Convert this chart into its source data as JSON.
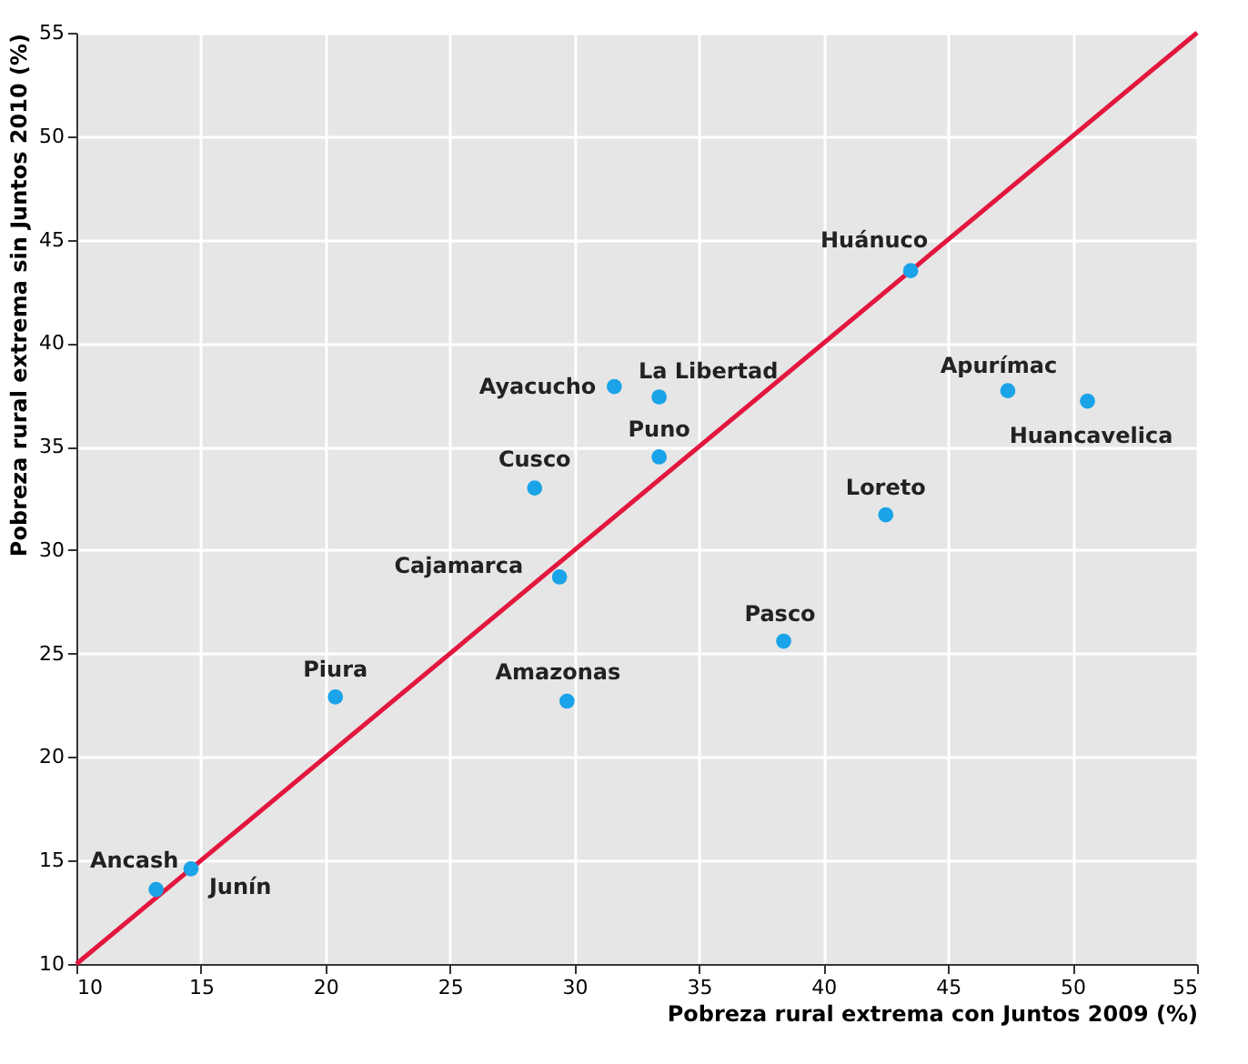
{
  "chart_data": {
    "type": "scatter",
    "xlabel": "Pobreza rural extrema con Juntos 2009 (%)",
    "ylabel": "Pobreza rural extrema sin Juntos 2010 (%)",
    "xlim": [
      10,
      55
    ],
    "ylim": [
      10,
      55
    ],
    "xticks": [
      10,
      15,
      20,
      25,
      30,
      35,
      40,
      45,
      50,
      55
    ],
    "yticks": [
      10,
      15,
      20,
      25,
      30,
      35,
      40,
      45,
      50,
      55
    ],
    "grid": true,
    "series": [
      {
        "color": "#1aa3e8",
        "marker": "circle",
        "x": [
          13.2,
          14.6,
          20.4,
          29.7,
          29.4,
          28.4,
          31.6,
          33.4,
          33.4,
          38.4,
          42.5,
          43.5,
          47.4,
          50.6
        ],
        "values": [
          13.6,
          14.6,
          22.9,
          22.7,
          28.7,
          33.0,
          37.9,
          37.4,
          34.5,
          25.6,
          31.7,
          43.5,
          37.7,
          37.2
        ]
      },
      {
        "type": "line",
        "color": "#e3173e",
        "line_style": "solid",
        "x": [
          10,
          55
        ],
        "values": [
          10,
          55
        ]
      }
    ],
    "annotations": [
      {
        "text": "Ancash",
        "x": 13.2,
        "y": 13.6
      },
      {
        "text": "Junín",
        "x": 14.6,
        "y": 14.6
      },
      {
        "text": "Piura",
        "x": 20.4,
        "y": 22.9
      },
      {
        "text": "Amazonas",
        "x": 29.7,
        "y": 22.7
      },
      {
        "text": "Cajamarca",
        "x": 29.4,
        "y": 28.7
      },
      {
        "text": "Cusco",
        "x": 28.4,
        "y": 33.0
      },
      {
        "text": "Ayacucho",
        "x": 31.6,
        "y": 37.9
      },
      {
        "text": "La Libertad",
        "x": 33.4,
        "y": 37.4
      },
      {
        "text": "Puno",
        "x": 33.4,
        "y": 34.5
      },
      {
        "text": "Pasco",
        "x": 38.4,
        "y": 25.6
      },
      {
        "text": "Loreto",
        "x": 42.5,
        "y": 31.7
      },
      {
        "text": "Huánuco",
        "x": 43.5,
        "y": 43.5
      },
      {
        "text": "Apurímac",
        "x": 47.4,
        "y": 37.7
      },
      {
        "text": "Huancavelica",
        "x": 50.6,
        "y": 37.2
      }
    ]
  }
}
